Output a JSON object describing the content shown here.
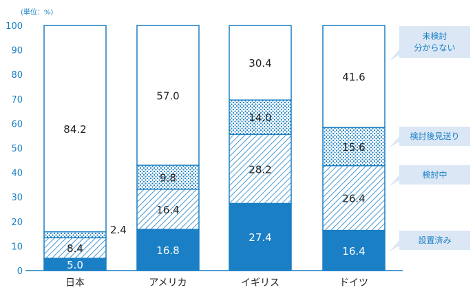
{
  "chart_data": {
    "type": "bar",
    "stacked": true,
    "unit_label": "(単位：%)",
    "categories": [
      "日本",
      "アメリカ",
      "イギリス",
      "ドイツ"
    ],
    "ylim": [
      0,
      100
    ],
    "yticks": [
      0,
      10,
      20,
      30,
      40,
      50,
      60,
      70,
      80,
      90,
      100
    ],
    "series": [
      {
        "name": "設置済み",
        "values": [
          5.0,
          16.8,
          27.4,
          16.4
        ],
        "labels": [
          "5.0",
          "16.8",
          "27.4",
          "16.4"
        ],
        "pattern": "solid",
        "color": "#1a7fc4"
      },
      {
        "name": "検討中",
        "values": [
          8.4,
          16.4,
          28.2,
          26.4
        ],
        "labels": [
          "8.4",
          "16.4",
          "28.2",
          "26.4"
        ],
        "pattern": "diagonal",
        "color": "#1a7fc4"
      },
      {
        "name": "検討後見送り",
        "values": [
          2.4,
          9.8,
          14.0,
          15.6
        ],
        "labels": [
          "2.4",
          "9.8",
          "14.0",
          "15.6"
        ],
        "pattern": "dots",
        "color": "#1a7fc4"
      },
      {
        "name": "未検討\n分からない",
        "values": [
          84.2,
          57.0,
          30.4,
          41.6
        ],
        "labels": [
          "84.2",
          "57.0",
          "30.4",
          "41.6"
        ],
        "pattern": "none",
        "color": "#1a7fc4"
      }
    ],
    "legend": "right",
    "grid": false
  }
}
